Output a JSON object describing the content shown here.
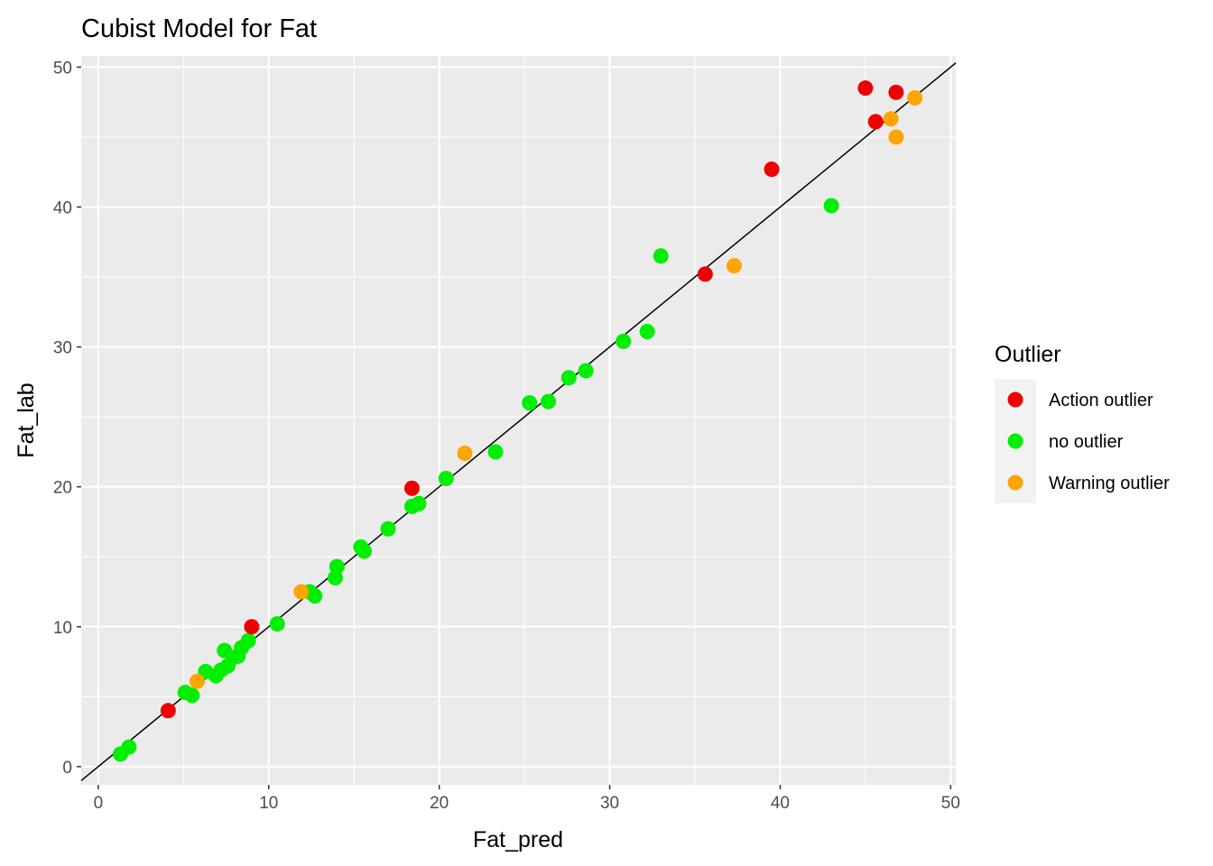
{
  "chart_data": {
    "type": "scatter",
    "title": "Cubist Model for Fat",
    "xlabel": "Fat_pred",
    "ylabel": "Fat_lab",
    "xlim": [
      -1.0,
      50.3
    ],
    "ylim": [
      -1.3,
      50.8
    ],
    "x_ticks": [
      0,
      10,
      20,
      30,
      40,
      50
    ],
    "y_ticks": [
      0,
      10,
      20,
      30,
      40,
      50
    ],
    "x_tick_labels": [
      "0",
      "10",
      "20",
      "30",
      "40",
      "50"
    ],
    "y_tick_labels": [
      "0",
      "10",
      "20",
      "30",
      "40",
      "50"
    ],
    "grid": true,
    "reference_line": {
      "type": "identity",
      "slope": 1,
      "intercept": 0
    },
    "legend": {
      "title": "Outlier",
      "placement": "right",
      "entries": [
        {
          "label": "Action outlier",
          "color": "#ee0000"
        },
        {
          "label": "no outlier",
          "color": "#00ee00"
        },
        {
          "label": "Warning outlier",
          "color": "#ffa500"
        }
      ]
    },
    "series": [
      {
        "name": "Action outlier",
        "color": "#ee0000",
        "points": [
          [
            4.1,
            4.0
          ],
          [
            9.0,
            10.0
          ],
          [
            18.4,
            19.9
          ],
          [
            35.6,
            35.2
          ],
          [
            39.5,
            42.7
          ],
          [
            45.0,
            48.5
          ],
          [
            45.6,
            46.1
          ],
          [
            46.8,
            48.2
          ]
        ]
      },
      {
        "name": "no outlier",
        "color": "#00ee00",
        "points": [
          [
            1.3,
            0.9
          ],
          [
            1.8,
            1.4
          ],
          [
            5.1,
            5.3
          ],
          [
            5.5,
            5.1
          ],
          [
            6.3,
            6.8
          ],
          [
            6.9,
            6.5
          ],
          [
            7.2,
            6.9
          ],
          [
            7.4,
            8.3
          ],
          [
            7.6,
            7.2
          ],
          [
            7.9,
            7.8
          ],
          [
            8.2,
            7.9
          ],
          [
            8.4,
            8.5
          ],
          [
            8.8,
            9.0
          ],
          [
            10.5,
            10.2
          ],
          [
            12.4,
            12.5
          ],
          [
            12.7,
            12.2
          ],
          [
            13.9,
            13.5
          ],
          [
            14.0,
            14.3
          ],
          [
            15.4,
            15.7
          ],
          [
            15.6,
            15.4
          ],
          [
            17.0,
            17.0
          ],
          [
            18.4,
            18.6
          ],
          [
            18.8,
            18.8
          ],
          [
            20.4,
            20.6
          ],
          [
            23.3,
            22.5
          ],
          [
            25.3,
            26.0
          ],
          [
            26.4,
            26.1
          ],
          [
            27.6,
            27.8
          ],
          [
            28.6,
            28.3
          ],
          [
            30.8,
            30.4
          ],
          [
            32.2,
            31.1
          ],
          [
            33.0,
            36.5
          ],
          [
            43.0,
            40.1
          ]
        ]
      },
      {
        "name": "Warning outlier",
        "color": "#ffa500",
        "points": [
          [
            5.8,
            6.1
          ],
          [
            11.9,
            12.5
          ],
          [
            21.5,
            22.4
          ],
          [
            37.3,
            35.8
          ],
          [
            46.5,
            46.3
          ],
          [
            46.8,
            45.0
          ],
          [
            47.9,
            47.8
          ]
        ]
      }
    ]
  }
}
